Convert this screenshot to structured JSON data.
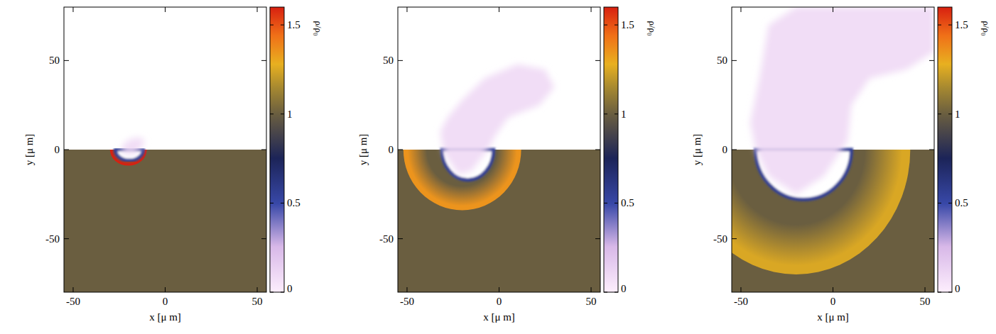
{
  "chart_data": [
    {
      "type": "density_map",
      "x_label": "x [μ m]",
      "y_label": "y [μ m]",
      "xlim": [
        -55,
        55
      ],
      "ylim": [
        -80,
        80
      ],
      "xticks": [
        -50,
        0,
        50
      ],
      "yticks": [
        -50,
        0,
        50
      ],
      "colorbar": {
        "label": "ρ/ρ₀",
        "range": [
          0,
          1.6
        ],
        "ticks": [
          0,
          0.5,
          1,
          1.5
        ]
      },
      "surface_y": 0,
      "material_density": 1,
      "crater": {
        "x_left": -27,
        "x_right": -12,
        "depth": -6,
        "rim_density": 0.55
      },
      "shock_front": {
        "center_x": -20,
        "radius_x": 10,
        "radius_y": 9,
        "peak_density": 1.6
      },
      "plume": {
        "density": 0.1,
        "points": [
          [
            -24,
            -2
          ],
          [
            -23,
            3
          ],
          [
            -19,
            6
          ],
          [
            -14,
            7
          ],
          [
            -11,
            5
          ],
          [
            -13,
            1
          ],
          [
            -17,
            -3
          ]
        ]
      }
    },
    {
      "type": "density_map",
      "x_label": "x [μ m]",
      "y_label": "y [μ m]",
      "xlim": [
        -55,
        55
      ],
      "ylim": [
        -80,
        80
      ],
      "xticks": [
        -50,
        0,
        50
      ],
      "yticks": [
        -50,
        0,
        50
      ],
      "colorbar": {
        "label": "ρ/ρ₀",
        "range": [
          0,
          1.6
        ],
        "ticks": [
          0,
          0.5,
          1,
          1.5
        ]
      },
      "surface_y": 0,
      "material_density": 1,
      "surface_density": 0.6,
      "crater": {
        "x_left": -31,
        "x_right": -3,
        "depth": -17,
        "rim_density": 0.55
      },
      "shock_front": {
        "center_x": -20,
        "radius_x": 32,
        "radius_y": 34,
        "peak_density": 1.35
      },
      "plume": {
        "density": 0.1,
        "points": [
          [
            -30,
            -2
          ],
          [
            -32,
            10
          ],
          [
            -28,
            18
          ],
          [
            -20,
            28
          ],
          [
            -8,
            40
          ],
          [
            10,
            48
          ],
          [
            25,
            45
          ],
          [
            30,
            35
          ],
          [
            22,
            25
          ],
          [
            5,
            18
          ],
          [
            -2,
            8
          ],
          [
            -6,
            0
          ],
          [
            -15,
            -12
          ],
          [
            -22,
            -14
          ]
        ]
      }
    },
    {
      "type": "density_map",
      "x_label": "x [μ m]",
      "y_label": "y [μ m]",
      "xlim": [
        -55,
        55
      ],
      "ylim": [
        -80,
        80
      ],
      "xticks": [
        -50,
        0,
        50
      ],
      "yticks": [
        -50,
        0,
        50
      ],
      "colorbar": {
        "label": "ρ/ρ₀",
        "range": [
          0,
          1.6
        ],
        "ticks": [
          0,
          0.5,
          1,
          1.5
        ]
      },
      "surface_y": 0,
      "material_density": 1,
      "surface_density": 0.6,
      "crater": {
        "x_left": -42,
        "x_right": 10,
        "depth": -28,
        "rim_density": 0.55
      },
      "shock_front": {
        "center_x": -20,
        "radius_x": 62,
        "radius_y": 70,
        "peak_density": 1.25
      },
      "plume": {
        "density": 0.1,
        "points": [
          [
            -42,
            0
          ],
          [
            -45,
            15
          ],
          [
            -40,
            40
          ],
          [
            -35,
            70
          ],
          [
            -20,
            80
          ],
          [
            0,
            80
          ],
          [
            30,
            80
          ],
          [
            55,
            80
          ],
          [
            55,
            55
          ],
          [
            40,
            45
          ],
          [
            20,
            40
          ],
          [
            10,
            25
          ],
          [
            8,
            5
          ],
          [
            -5,
            -15
          ],
          [
            -20,
            -25
          ],
          [
            -35,
            -15
          ]
        ]
      }
    }
  ]
}
